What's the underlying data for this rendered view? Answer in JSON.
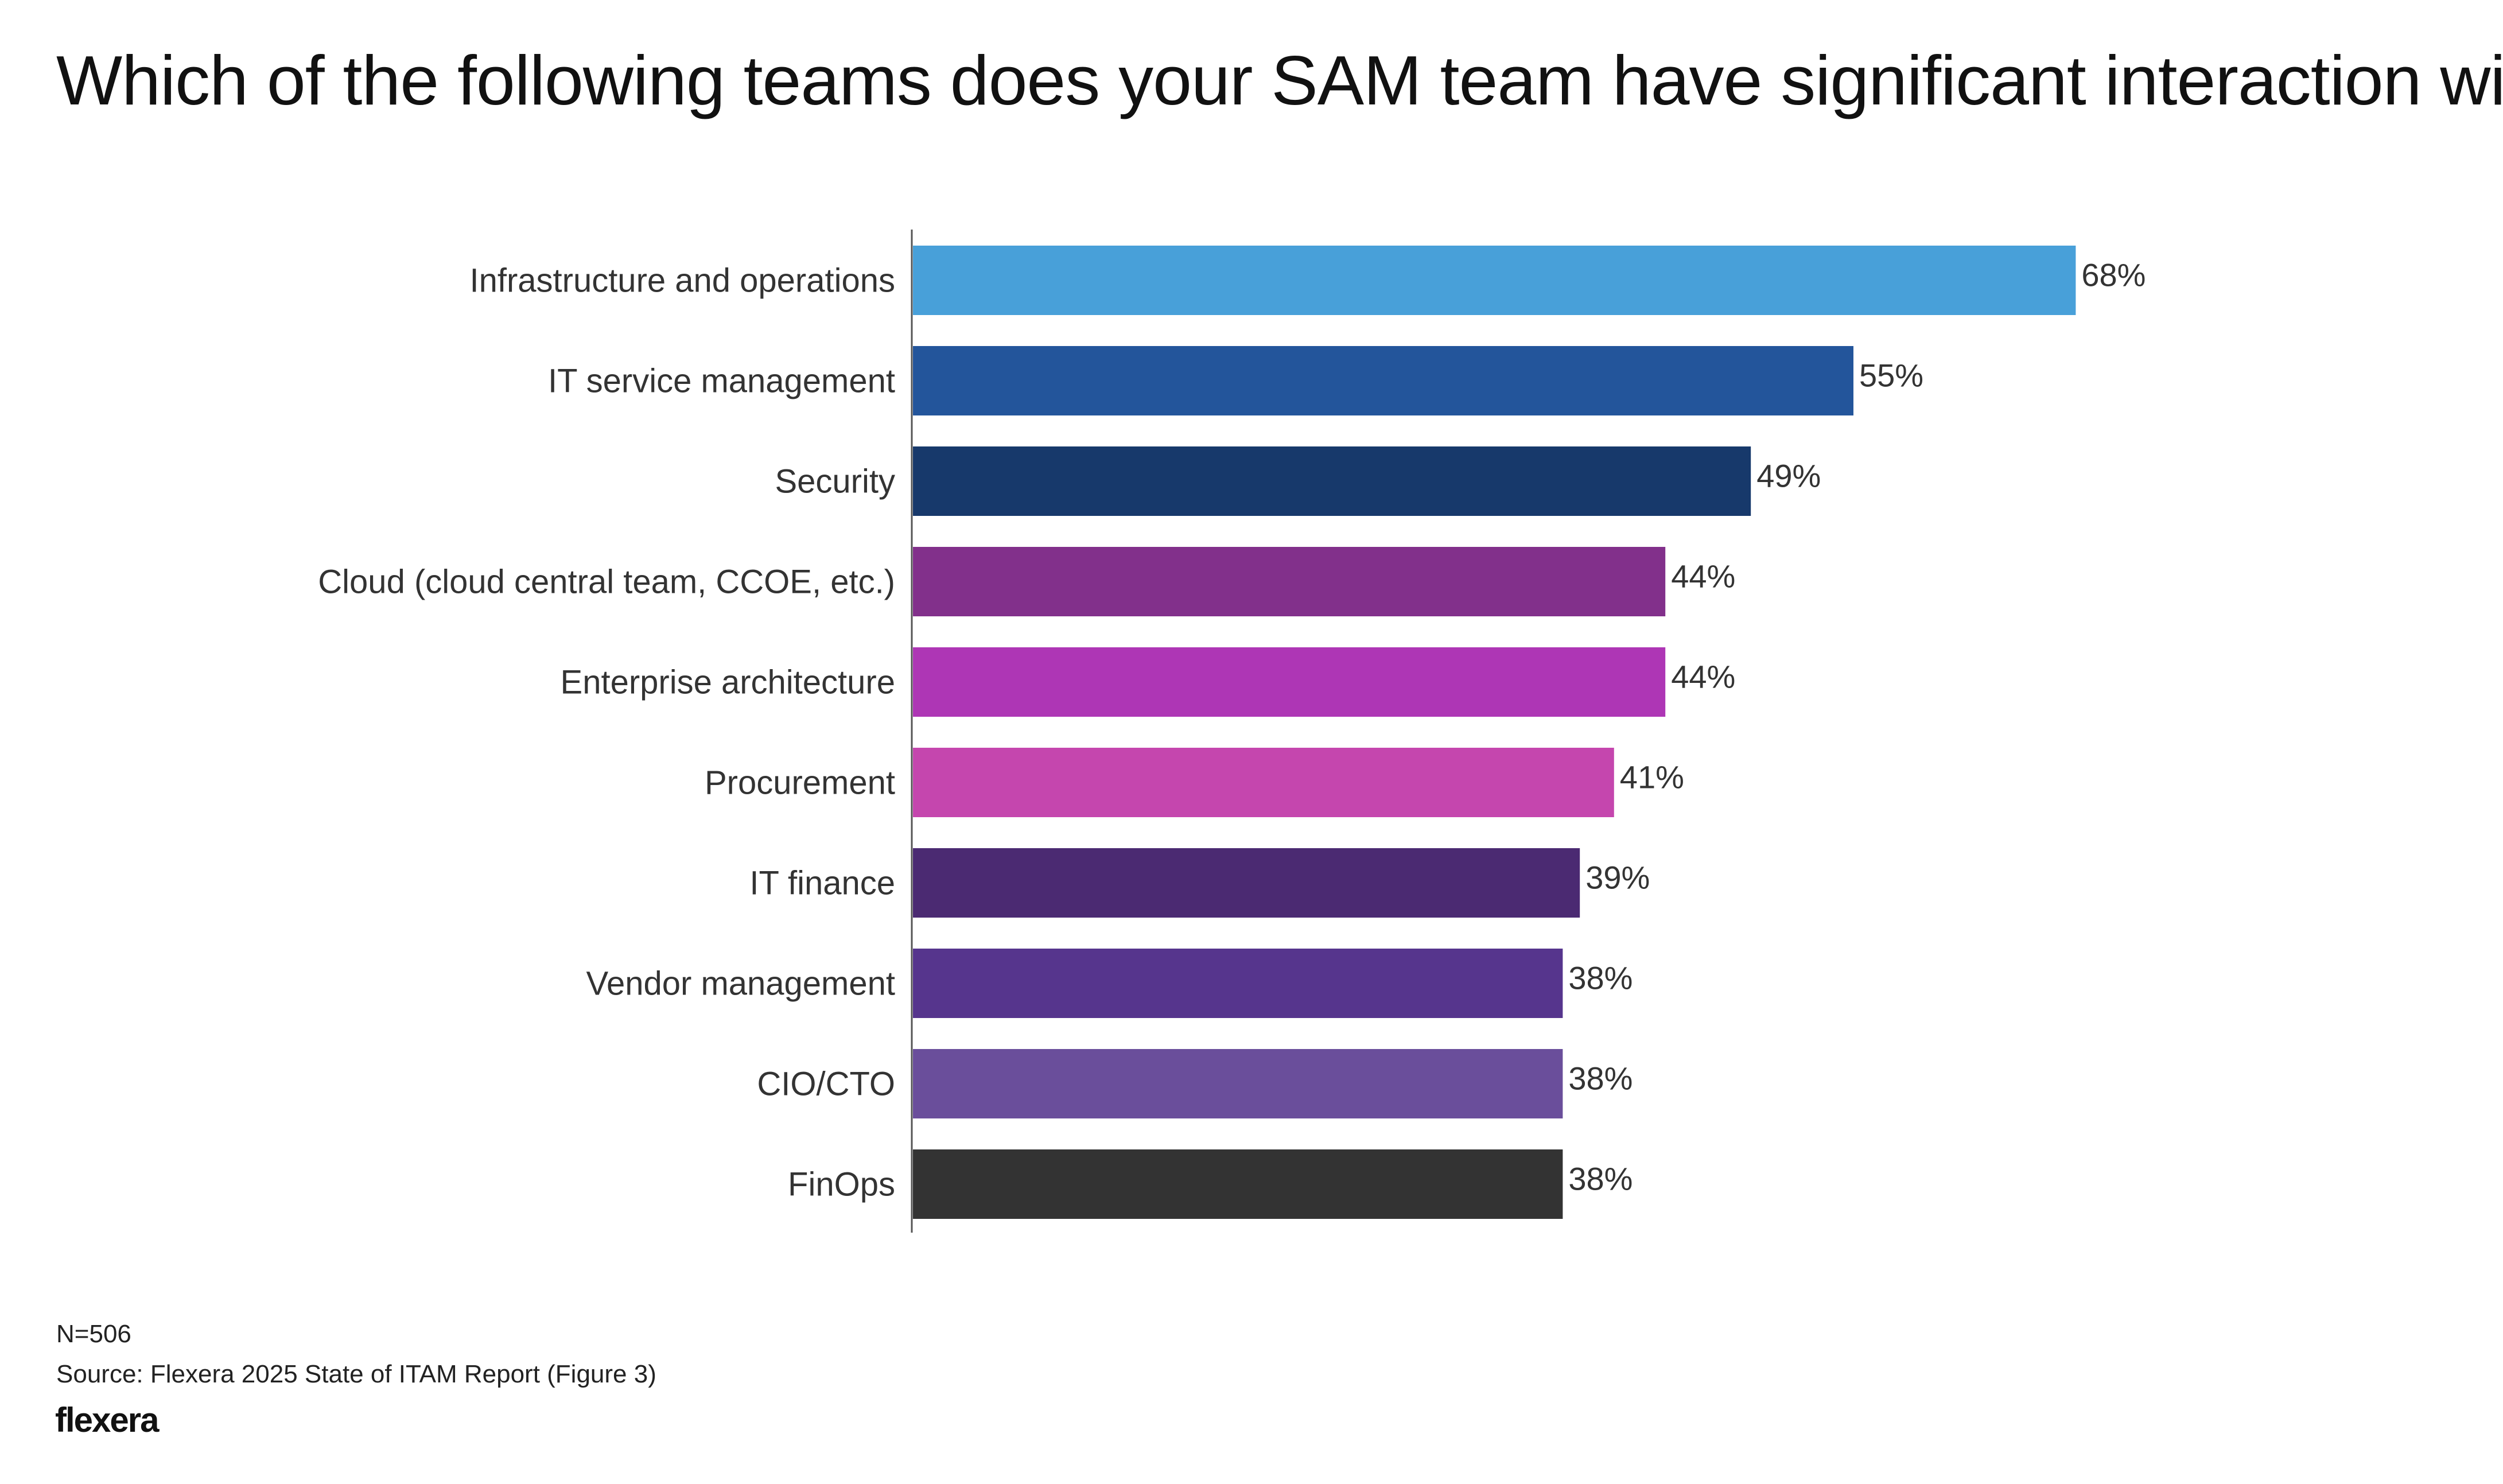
{
  "chart_data": {
    "type": "bar",
    "orientation": "horizontal",
    "title": "Which of the following teams does your SAM team have significant interaction with?",
    "categories": [
      "Infrastructure and operations",
      "IT service management",
      "Security",
      "Cloud (cloud central team, CCOE, etc.)",
      "Enterprise architecture",
      "Procurement",
      "IT finance",
      "Vendor management",
      "CIO/CTO",
      "FinOps"
    ],
    "values": [
      68,
      55,
      49,
      44,
      44,
      41,
      39,
      38,
      38,
      38
    ],
    "value_labels": [
      "68%",
      "55%",
      "49%",
      "44%",
      "44%",
      "41%",
      "39%",
      "38%",
      "38%",
      "38%"
    ],
    "colors": [
      "#48a0d9",
      "#23559b",
      "#17396b",
      "#82308b",
      "#ae36b5",
      "#c546ae",
      "#4b2a72",
      "#56358d",
      "#6a4e9b",
      "#333333"
    ],
    "unit": "%",
    "xlabel": "",
    "ylabel": "",
    "xlim": [
      0,
      100
    ],
    "grid": false,
    "legend": "none"
  },
  "footer": {
    "sample": "N=506",
    "source": "Source: Flexera 2025 State of ITAM Report (Figure 3)",
    "logo": "flexera"
  }
}
